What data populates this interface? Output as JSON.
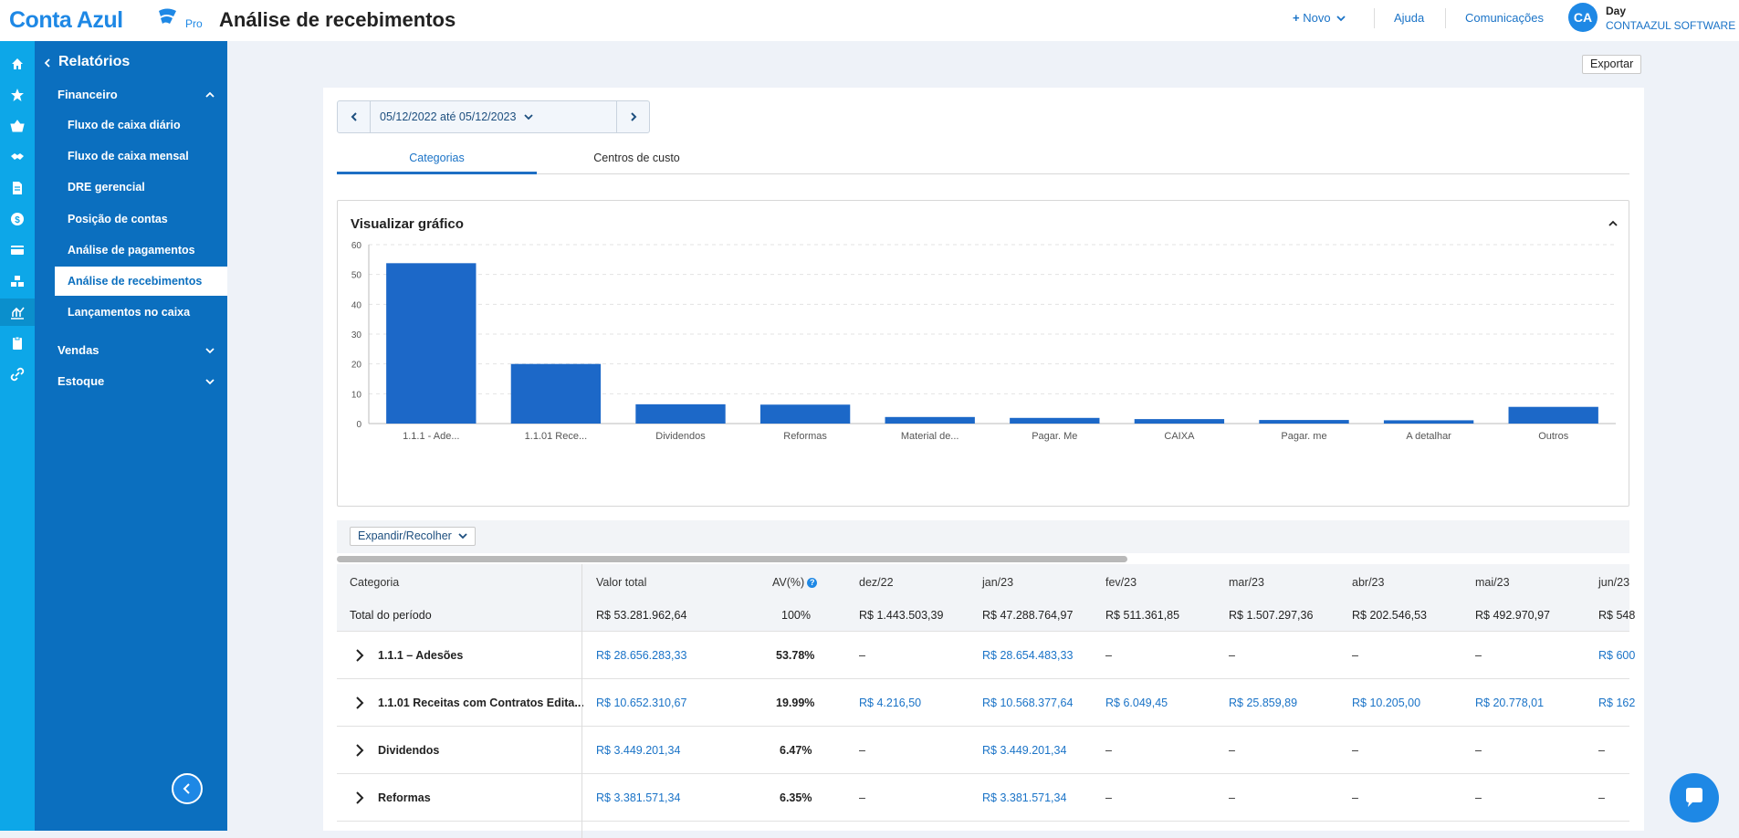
{
  "brand": {
    "name": "Conta Azul",
    "tier": "Pro",
    "color": "#1e88e5"
  },
  "page_title": "Análise de recebimentos",
  "topbar": {
    "new_label": "Novo",
    "help_label": "Ajuda",
    "comms_label": "Comunicações",
    "avatar_initials": "CA",
    "user_name": "Day",
    "company": "CONTAAZUL SOFTWARE"
  },
  "rail": {
    "icons": [
      "home-icon",
      "star-icon",
      "basket-icon",
      "handshake-icon",
      "document-icon",
      "dollar-icon",
      "card-icon",
      "boxes-icon",
      "report-icon",
      "clipboard-icon",
      "link-icon"
    ],
    "active_index": 8
  },
  "sidebar": {
    "title": "Relatórios",
    "financeiro_label": "Financeiro",
    "items": [
      {
        "label": "Fluxo de caixa diário"
      },
      {
        "label": "Fluxo de caixa mensal"
      },
      {
        "label": "DRE gerencial"
      },
      {
        "label": "Posição de contas"
      },
      {
        "label": "Análise de pagamentos"
      },
      {
        "label": "Análise de recebimentos"
      },
      {
        "label": "Lançamentos no caixa"
      }
    ],
    "active_index": 5,
    "vendas_label": "Vendas",
    "estoque_label": "Estoque"
  },
  "export_label": "Exportar",
  "date_range": "05/12/2022 até 05/12/2023",
  "tabs": [
    {
      "label": "Categorias"
    },
    {
      "label": "Centros de custo"
    }
  ],
  "active_tab": 0,
  "chart_section_title": "Visualizar gráfico",
  "chart_data": {
    "type": "bar",
    "categories": [
      "1.1.1 - Ade...",
      "1.1.01 Rece...",
      "Dividendos",
      "Reformas",
      "Material de...",
      "Pagar. Me",
      "CAIXA",
      "Pagar. me",
      "A detalhar",
      "Outros"
    ],
    "values": [
      53.78,
      19.99,
      6.47,
      6.35,
      2.2,
      1.9,
      1.5,
      1.2,
      1.1,
      5.6
    ],
    "ylim": [
      0,
      60
    ],
    "yticks": [
      0,
      10,
      20,
      30,
      40,
      50,
      60
    ],
    "bar_color": "#1c68c8",
    "grid": true,
    "title": "",
    "xlabel": "",
    "ylabel": ""
  },
  "table": {
    "expand_label": "Expandir/Recolher",
    "headers": {
      "categoria": "Categoria",
      "valor_total": "Valor total",
      "av": "AV(%)",
      "months": [
        "dez/22",
        "jan/23",
        "fev/23",
        "mar/23",
        "abr/23",
        "mai/23",
        "jun/23"
      ]
    },
    "total_row": {
      "label": "Total do período",
      "valor_total": "R$ 53.281.962,64",
      "av": "100%",
      "months": [
        "R$ 1.443.503,39",
        "R$ 47.288.764,97",
        "R$ 511.361,85",
        "R$ 1.507.297,36",
        "R$ 202.546,53",
        "R$ 492.970,97",
        "R$ 548"
      ]
    },
    "rows": [
      {
        "category": "1.1.1 – Adesões",
        "valor_total": "R$ 28.656.283,33",
        "av": "53.78%",
        "months": [
          "–",
          "R$ 28.654.483,33",
          "–",
          "–",
          "–",
          "–",
          "R$ 600"
        ]
      },
      {
        "category": "1.1.01 Receitas com Contratos Edita...",
        "valor_total": "R$ 10.652.310,67",
        "av": "19.99%",
        "months": [
          "R$ 4.216,50",
          "R$ 10.568.377,64",
          "R$ 6.049,45",
          "R$ 25.859,89",
          "R$ 10.205,00",
          "R$ 20.778,01",
          "R$ 162"
        ]
      },
      {
        "category": "Dividendos",
        "valor_total": "R$ 3.449.201,34",
        "av": "6.47%",
        "months": [
          "–",
          "R$ 3.449.201,34",
          "–",
          "–",
          "–",
          "–",
          "–"
        ]
      },
      {
        "category": "Reformas",
        "valor_total": "R$ 3.381.571,34",
        "av": "6.35%",
        "months": [
          "–",
          "R$ 3.381.571,34",
          "–",
          "–",
          "–",
          "–",
          "–"
        ]
      }
    ]
  }
}
